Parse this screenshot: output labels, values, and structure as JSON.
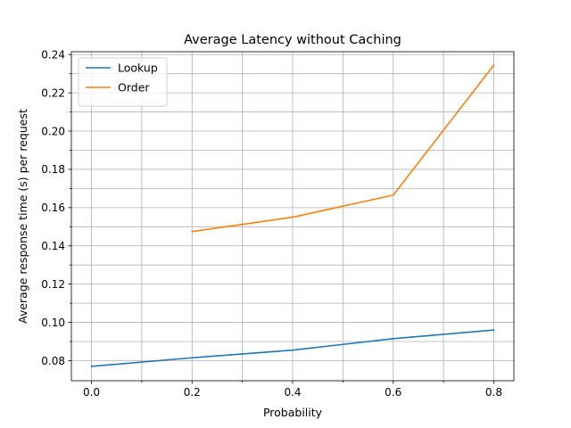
{
  "chart_data": {
    "type": "line",
    "title": "Average Latency without Caching",
    "xlabel": "Probability",
    "ylabel": "Average response time (s) per request",
    "xlim": [
      -0.04,
      0.84
    ],
    "ylim": [
      0.0695,
      0.2415
    ],
    "x_ticks": [
      0.0,
      0.2,
      0.4,
      0.6,
      0.8
    ],
    "x_tick_labels": [
      "0.0",
      "0.2",
      "0.4",
      "0.6",
      "0.8"
    ],
    "x_minor_ticks": [
      0.1,
      0.3,
      0.5,
      0.7
    ],
    "y_ticks": [
      0.08,
      0.1,
      0.12,
      0.14,
      0.16,
      0.18,
      0.2,
      0.22,
      0.24
    ],
    "y_tick_labels": [
      "0.08",
      "0.10",
      "0.12",
      "0.14",
      "0.16",
      "0.18",
      "0.20",
      "0.22",
      "0.24"
    ],
    "y_minor_ticks": [
      0.09,
      0.11,
      0.13,
      0.15,
      0.17,
      0.19,
      0.21,
      0.23
    ],
    "grid": true,
    "legend_position": "top-left",
    "series": [
      {
        "name": "Lookup",
        "color": "#1f77b4",
        "x": [
          0.0,
          0.2,
          0.4,
          0.6,
          0.8
        ],
        "y": [
          0.077,
          0.0815,
          0.0855,
          0.0915,
          0.096
        ]
      },
      {
        "name": "Order",
        "color": "#ff7f0e",
        "x": [
          0.2,
          0.4,
          0.6,
          0.8
        ],
        "y": [
          0.1475,
          0.155,
          0.1665,
          0.2345
        ]
      }
    ]
  }
}
